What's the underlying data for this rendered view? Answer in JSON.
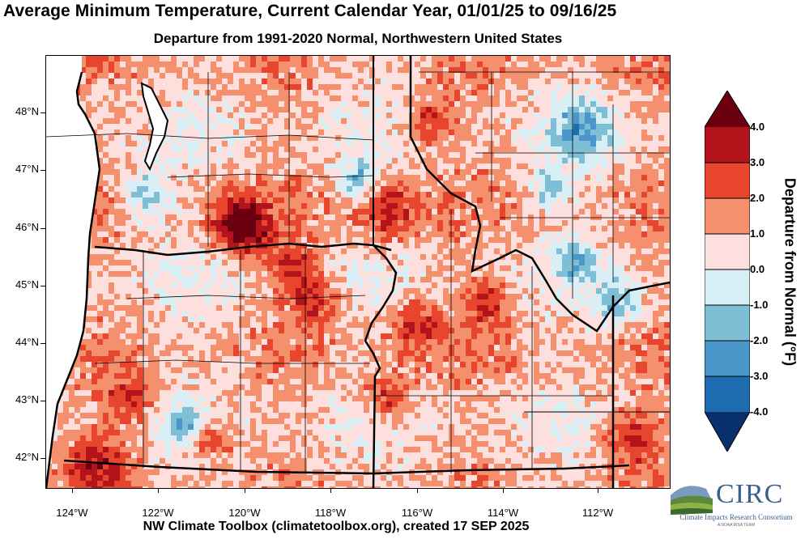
{
  "title": "Average Minimum Temperature, Current Calendar Year, 01/01/25 to 09/16/25",
  "subtitle": "Departure from 1991-2020 Normal, Northwestern United States",
  "credit": "NW Climate Toolbox (climatetoolbox.org), created 17 SEP 2025",
  "map": {
    "lat_labels": [
      "48°N",
      "47°N",
      "46°N",
      "45°N",
      "44°N",
      "43°N",
      "42°N"
    ],
    "lon_labels": [
      "124°W",
      "122°W",
      "120°W",
      "118°W",
      "116°W",
      "114°W",
      "112°W"
    ],
    "colors": {
      "ocean": "#ffffff",
      "b_minus4": "#08306b",
      "b_minus3": "#1f6db1",
      "b_minus2": "#4a98c9",
      "b_minus1": "#7fbfd6",
      "b_0": "#d8f0f5",
      "b_1": "#fde0dd",
      "b_2": "#f5906f",
      "b_3": "#e8452f",
      "b_4": "#b3141b",
      "b_5": "#6b0010"
    }
  },
  "legend": {
    "title": "Departure from Normal (°F)",
    "labels": [
      "4.0",
      "3.0",
      "2.0",
      "1.0",
      "0.0",
      "-1.0",
      "-2.0",
      "-3.0",
      "-4.0"
    ]
  },
  "logo": {
    "name": "CIRC",
    "subtitle": "Climate Impacts Research Consortium",
    "tag": "A NOAA RISA TEAM"
  }
}
